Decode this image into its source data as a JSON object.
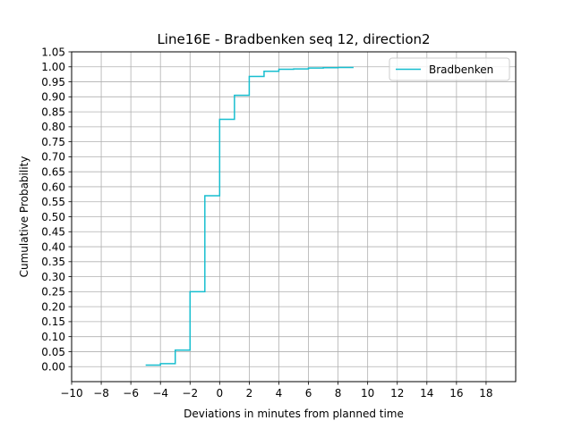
{
  "chart_data": {
    "type": "line",
    "step": "post",
    "title": "Line16E - Bradbenken seq 12, direction2",
    "xlabel": "Deviations in minutes from planned time",
    "ylabel": "Cumulative Probability",
    "xlim": [
      -10,
      20
    ],
    "ylim": [
      -0.05,
      1.05
    ],
    "xticks": [
      -10,
      -8,
      -6,
      -4,
      -2,
      0,
      2,
      4,
      6,
      8,
      10,
      12,
      14,
      16,
      18
    ],
    "xtick_labels": [
      "−10",
      "−8",
      "−6",
      "−4",
      "−2",
      "0",
      "2",
      "4",
      "6",
      "8",
      "10",
      "12",
      "14",
      "16",
      "18"
    ],
    "yticks": [
      0.0,
      0.05,
      0.1,
      0.15,
      0.2,
      0.25,
      0.3,
      0.35,
      0.4,
      0.45,
      0.5,
      0.55,
      0.6,
      0.65,
      0.7,
      0.75,
      0.8,
      0.85,
      0.9,
      0.95,
      1.0,
      1.05
    ],
    "ytick_labels": [
      "0.00",
      "0.05",
      "0.10",
      "0.15",
      "0.20",
      "0.25",
      "0.30",
      "0.35",
      "0.40",
      "0.45",
      "0.50",
      "0.55",
      "0.60",
      "0.65",
      "0.70",
      "0.75",
      "0.80",
      "0.85",
      "0.90",
      "0.95",
      "1.00",
      "1.05"
    ],
    "grid": true,
    "legend_position": "top-right",
    "series": [
      {
        "name": "Bradbenken",
        "color": "#17becf",
        "x": [
          -5,
          -4,
          -3,
          -2,
          -1,
          0,
          1,
          2,
          3,
          4,
          5,
          6,
          7,
          8,
          9
        ],
        "y": [
          0.005,
          0.01,
          0.055,
          0.25,
          0.57,
          0.825,
          0.905,
          0.968,
          0.985,
          0.992,
          0.993,
          0.996,
          0.997,
          0.998,
          1.0
        ]
      }
    ]
  }
}
